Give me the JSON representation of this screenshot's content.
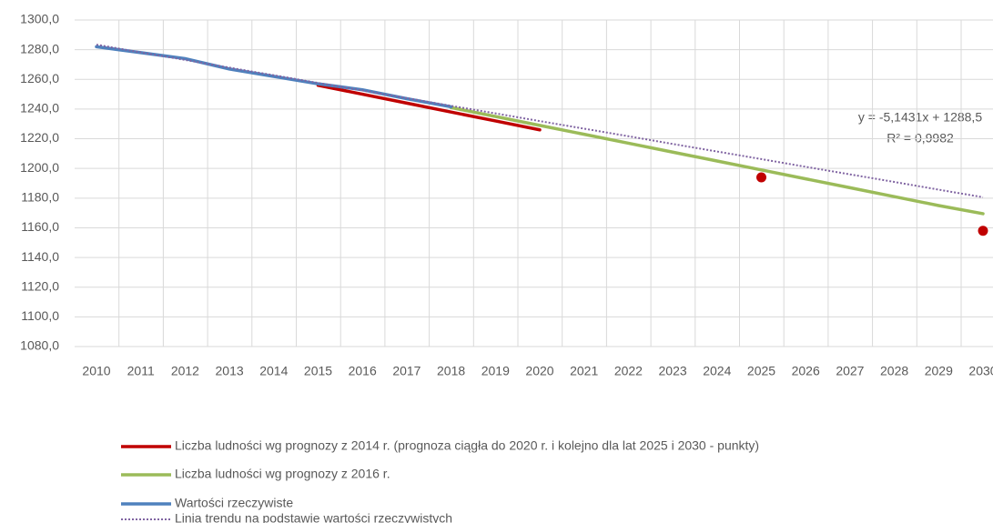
{
  "chart_data": {
    "type": "line",
    "categories": [
      "2010",
      "2011",
      "2012",
      "2013",
      "2014",
      "2015",
      "2016",
      "2017",
      "2018",
      "2019",
      "2020",
      "2021",
      "2022",
      "2023",
      "2024",
      "2025",
      "2026",
      "2027",
      "2028",
      "2029",
      "2030"
    ],
    "ylim": [
      1080,
      1300
    ],
    "yticks": [
      {
        "value": 1080,
        "label": "1080,0"
      },
      {
        "value": 1100,
        "label": "1100,0"
      },
      {
        "value": 1120,
        "label": "1120,0"
      },
      {
        "value": 1140,
        "label": "1140,0"
      },
      {
        "value": 1160,
        "label": "1160,0"
      },
      {
        "value": 1180,
        "label": "1180,0"
      },
      {
        "value": 1200,
        "label": "1200,0"
      },
      {
        "value": 1220,
        "label": "1220,0"
      },
      {
        "value": 1240,
        "label": "1240,0"
      },
      {
        "value": 1260,
        "label": "1260,0"
      },
      {
        "value": 1280,
        "label": "1280,0"
      },
      {
        "value": 1300,
        "label": "1300,0"
      }
    ],
    "grid": true,
    "legend": "bottom",
    "series": [
      {
        "name": "Liczba ludności wg prognozy z 2014 r. (prognoza ciągła do 2020 r. i kolejno dla lat 2025 i 2030 - punkty)",
        "color": "#c00000",
        "style": "solid",
        "values": [
          null,
          null,
          null,
          null,
          null,
          1256,
          1250,
          1244,
          1238,
          1232,
          1226,
          null,
          null,
          null,
          null,
          1194,
          null,
          null,
          null,
          null,
          1158
        ]
      },
      {
        "name": "Liczba ludności wg prognozy z 2016 r.",
        "color": "#9bbb59",
        "style": "solid",
        "values": [
          null,
          null,
          null,
          null,
          null,
          null,
          null,
          null,
          1241,
          1235,
          1229,
          1223,
          1217,
          1211,
          1205,
          1199,
          1193,
          1187,
          1181,
          1175,
          1169.5
        ]
      },
      {
        "name": "Wartości rzeczywiste",
        "color": "#4f81bd",
        "style": "solid",
        "values": [
          1282,
          1278,
          1274,
          1267,
          1262,
          1257,
          1253,
          1247,
          1241.5,
          null,
          null,
          null,
          null,
          null,
          null,
          null,
          null,
          null,
          null,
          null,
          null
        ]
      },
      {
        "name": "Linia trendu na podstawie wartości rzeczywistych",
        "color": "#8064a2",
        "style": "dotted",
        "values": [
          1283.4,
          1278.2,
          1273.1,
          1267.9,
          1262.8,
          1257.6,
          1252.5,
          1247.4,
          1242.2,
          1237.1,
          1231.9,
          1226.8,
          1221.7,
          1216.5,
          1211.4,
          1206.3,
          1201.1,
          1196.0,
          1190.9,
          1185.7,
          1180.6
        ]
      }
    ],
    "annotations": [
      "y = -5,1431x + 1288,5",
      "R² = 0,9982"
    ]
  }
}
